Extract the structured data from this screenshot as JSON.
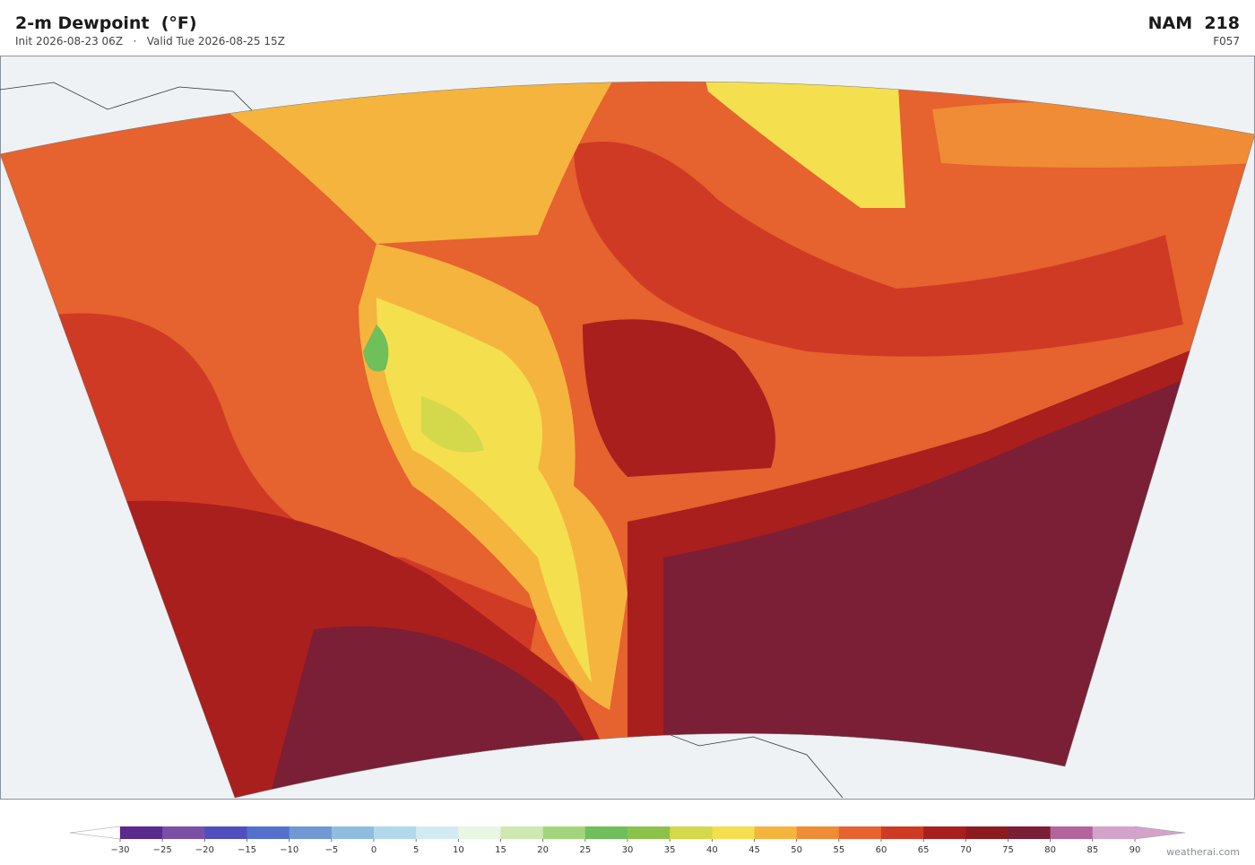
{
  "header": {
    "title": "2-m Dewpoint  (°F)",
    "init": "Init 2026-08-23 06Z",
    "separator": "·",
    "valid": "Valid Tue 2026-08-25 15Z",
    "model": "NAM  218",
    "forecast_hour": "F057"
  },
  "colorbar": {
    "ticks": [
      {
        "value": -30,
        "label": "−30"
      },
      {
        "value": -25,
        "label": "−25"
      },
      {
        "value": -20,
        "label": "−20"
      },
      {
        "value": -15,
        "label": "−15"
      },
      {
        "value": -10,
        "label": "−10"
      },
      {
        "value": -5,
        "label": "−5"
      },
      0,
      5,
      10,
      15,
      20,
      25,
      30,
      35,
      40,
      45,
      50,
      55,
      60,
      65,
      70,
      75,
      80,
      85,
      90
    ],
    "colors": [
      "#5b2a8e",
      "#7b4fa8",
      "#4f4fbf",
      "#5470cf",
      "#6f98d4",
      "#8fbde0",
      "#b2d8ec",
      "#d2ebf3",
      "#e8f6e4",
      "#cde8b2",
      "#a3d67c",
      "#6fbf5a",
      "#8cc24a",
      "#d3d94a",
      "#f4df4f",
      "#f5b43e",
      "#ef8c35",
      "#e6622e",
      "#cf3a25",
      "#a91f1e",
      "#8d1a1f",
      "#7a1f35",
      "#b4639c",
      "#d4a3cc"
    ],
    "extend_low_color": "#ffffff",
    "extend_high_color": "#d4a3cc"
  },
  "watermark": "weatherai.com"
}
